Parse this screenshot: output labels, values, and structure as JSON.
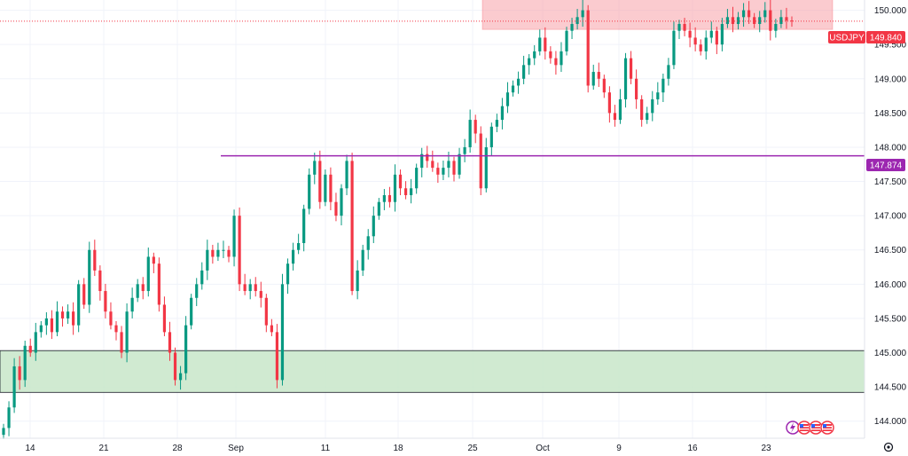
{
  "chart_data": {
    "type": "candlestick",
    "symbol": "USDJPY",
    "last_price": 149.84,
    "last_price_label": "149.840",
    "resistance_level": 147.874,
    "resistance_label": "147.874",
    "y_ticks": [
      "144.000",
      "144.500",
      "145.000",
      "145.500",
      "146.000",
      "146.500",
      "147.000",
      "147.500",
      "148.000",
      "148.500",
      "149.000",
      "149.500",
      "150.000"
    ],
    "y_range": [
      143.75,
      150.15
    ],
    "x_ticks": [
      "14",
      "21",
      "28",
      "Sep",
      "11",
      "18",
      "25",
      "Oct",
      "9",
      "16",
      "23"
    ],
    "supply_zone": {
      "low": 149.72,
      "high": 150.17,
      "color": "#f7a1a8"
    },
    "demand_zone": {
      "low": 144.42,
      "high": 145.03,
      "color": "#c8e6c9"
    },
    "candle_closes": [
      143.9,
      144.2,
      144.8,
      144.6,
      145.1,
      145.0,
      145.3,
      145.4,
      145.5,
      145.3,
      145.6,
      145.5,
      145.6,
      145.4,
      146.0,
      145.7,
      146.5,
      146.2,
      145.9,
      145.6,
      145.4,
      145.3,
      145.0,
      145.6,
      145.8,
      146.0,
      145.9,
      146.4,
      146.3,
      145.7,
      145.3,
      145.0,
      144.6,
      144.7,
      145.4,
      145.8,
      146.0,
      146.2,
      146.5,
      146.4,
      146.5,
      146.5,
      146.4,
      147.0,
      146.0,
      145.9,
      146.0,
      145.9,
      145.8,
      145.4,
      145.3,
      144.6,
      146.0,
      146.3,
      146.5,
      146.6,
      147.1,
      147.6,
      147.8,
      147.2,
      147.6,
      147.2,
      147.0,
      147.4,
      147.8,
      145.9,
      146.2,
      146.5,
      146.7,
      147.0,
      147.2,
      147.3,
      147.2,
      147.6,
      147.4,
      147.3,
      147.4,
      147.7,
      147.9,
      147.8,
      147.7,
      147.6,
      147.7,
      147.8,
      147.6,
      147.9,
      148.0,
      148.4,
      148.2,
      147.4,
      148.0,
      148.3,
      148.4,
      148.6,
      148.8,
      148.9,
      149.0,
      149.2,
      149.3,
      149.4,
      149.6,
      149.4,
      149.3,
      149.2,
      149.4,
      149.7,
      149.8,
      149.9,
      150.0,
      148.9,
      149.1,
      149.0,
      148.8,
      148.5,
      148.4,
      148.7,
      149.3,
      149.0,
      148.7,
      148.4,
      148.5,
      148.7,
      148.8,
      149.0,
      149.2,
      149.7,
      149.8,
      149.7,
      149.6,
      149.5,
      149.4,
      149.6,
      149.7,
      149.5,
      149.8,
      149.9,
      149.8,
      149.9,
      150.0,
      149.9,
      149.8,
      149.9,
      150.0,
      149.7,
      149.8,
      149.9,
      149.85,
      149.84
    ]
  }
}
